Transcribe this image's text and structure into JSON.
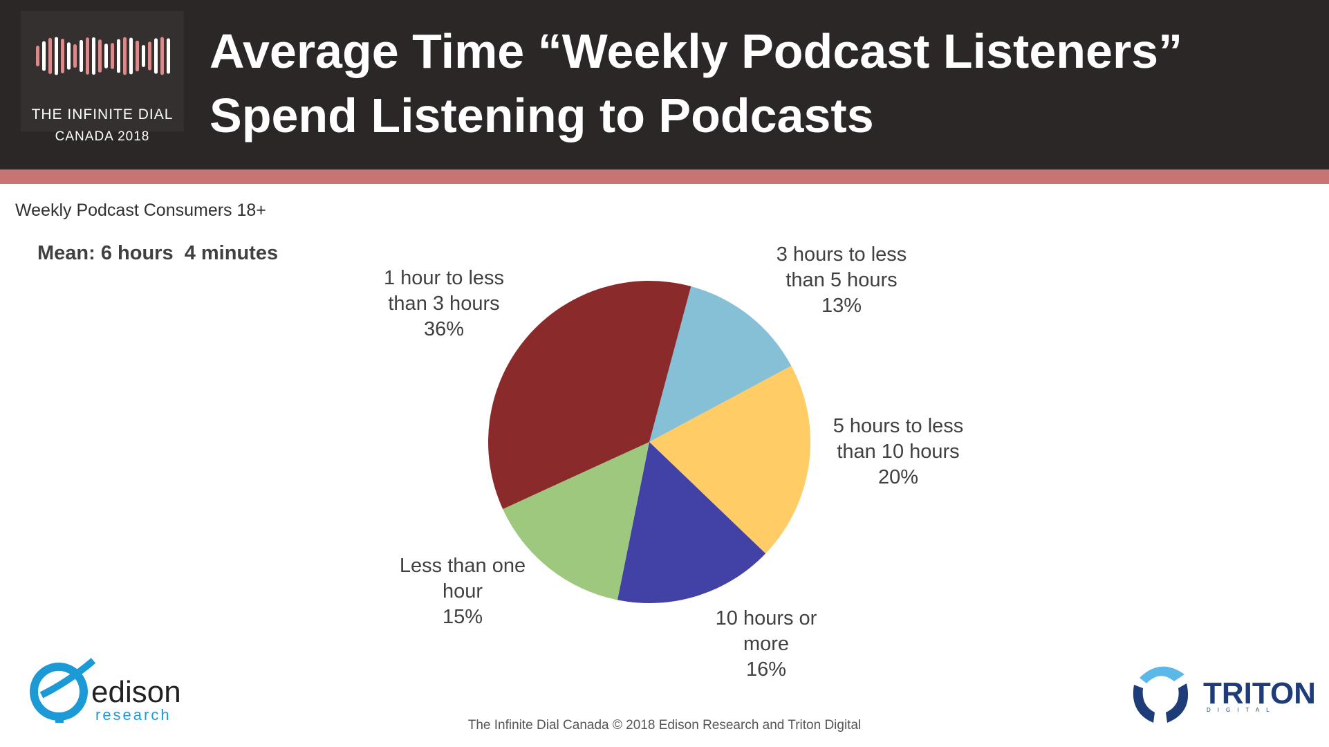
{
  "header": {
    "title": "Average Time “Weekly Podcast Listeners” Spend Listening to Podcasts",
    "logo_title": "THE INFINITE DIAL",
    "logo_subtitle": "CANADA 2018"
  },
  "chart_data": {
    "type": "pie",
    "subtitle": "Weekly Podcast Consumers 18+",
    "annotation": "Mean: 6 hours  4 minutes",
    "categories": [
      "3 hours to less than 5 hours",
      "5 hours to less than 10 hours",
      "10 hours or more",
      "Less than one hour",
      "1 hour to less than 3 hours"
    ],
    "values": [
      13,
      20,
      16,
      15,
      36
    ],
    "value_labels": [
      "13%",
      "20%",
      "16%",
      "15%",
      "36%"
    ],
    "colors": [
      "#86c0d6",
      "#ffcc66",
      "#4242a6",
      "#9dc87e",
      "#8b2a2a"
    ]
  },
  "footer": "The Infinite Dial Canada  © 2018 Edison Research and Triton Digital",
  "logos": {
    "edison": "edison",
    "edison_sub": "research",
    "triton": "TRITON",
    "triton_sub": "DIGITAL"
  }
}
